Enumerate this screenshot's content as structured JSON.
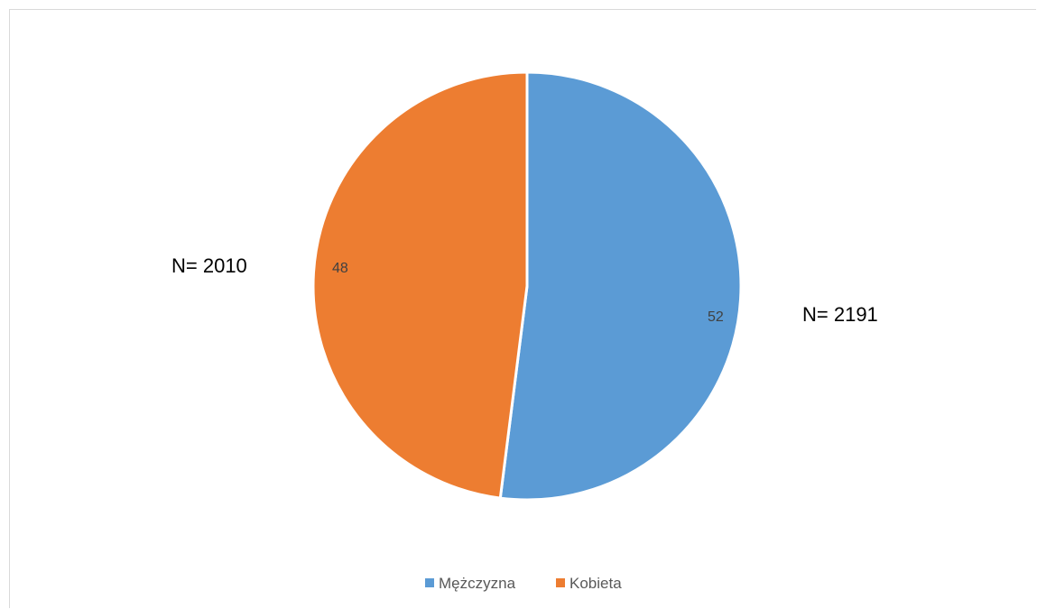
{
  "chart_data": {
    "type": "pie",
    "title": "",
    "categories": [
      "Mężczyzna",
      "Kobieta"
    ],
    "values": [
      52,
      48
    ],
    "colors": [
      "#5b9bd5",
      "#ed7d31"
    ],
    "data_labels": [
      "52",
      "48"
    ],
    "start_angle_deg": 0,
    "direction": "clockwise",
    "legend": {
      "position": "bottom",
      "entries": [
        "Mężczyzna",
        "Kobieta"
      ]
    },
    "annotations": [
      "N= 2191",
      "N= 2010"
    ]
  }
}
